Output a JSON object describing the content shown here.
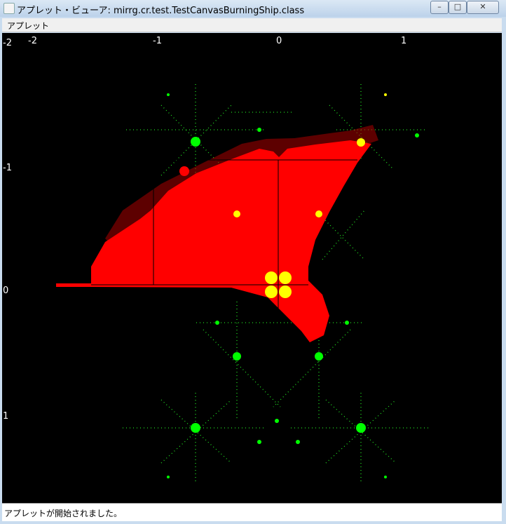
{
  "window": {
    "title": "アプレット・ビューア: mirrg.cr.test.TestCanvasBurningShip.class",
    "menu": "アプレット",
    "status": "アプレットが開始されました。"
  },
  "canvas": {
    "x_labels": [
      "-2",
      "-2",
      "-1",
      "0",
      "1"
    ],
    "y_labels": [
      "-1",
      "0",
      "1"
    ]
  }
}
